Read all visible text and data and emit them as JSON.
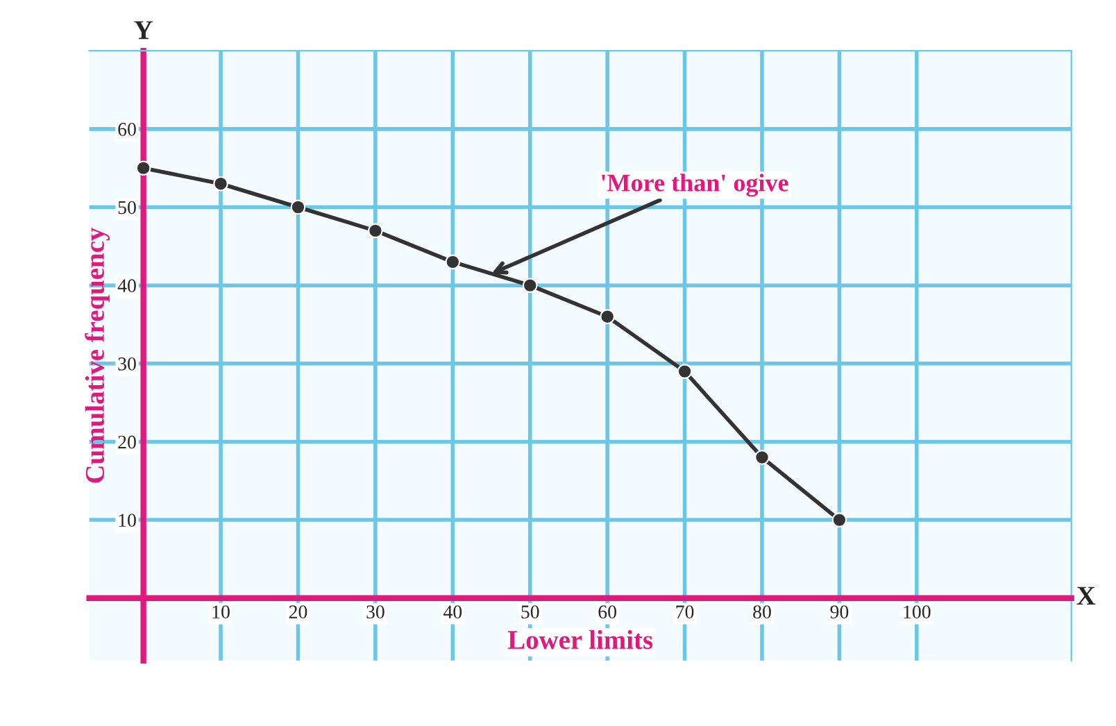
{
  "chart_data": {
    "type": "line",
    "xlabel": "Lower limits",
    "ylabel": "Cumulative frequency",
    "x": [
      0,
      10,
      20,
      30,
      40,
      50,
      60,
      70,
      80,
      90
    ],
    "series": [
      {
        "color": "#333333",
        "values": [
          55,
          53,
          50,
          47,
          43,
          40,
          36,
          29,
          18,
          10
        ]
      }
    ],
    "xlim": [
      -7,
      120
    ],
    "ylim": [
      -8,
      70
    ],
    "xticks": [
      10,
      20,
      30,
      40,
      50,
      60,
      70,
      80,
      90,
      100
    ],
    "yticks": [
      10,
      20,
      30,
      40,
      50,
      60
    ],
    "grid": true,
    "marker": "circle",
    "line_style": "solid",
    "annotations": [
      {
        "text": "'More than' ogive",
        "x": 45,
        "y": 41.5
      },
      "X",
      "Y"
    ]
  }
}
